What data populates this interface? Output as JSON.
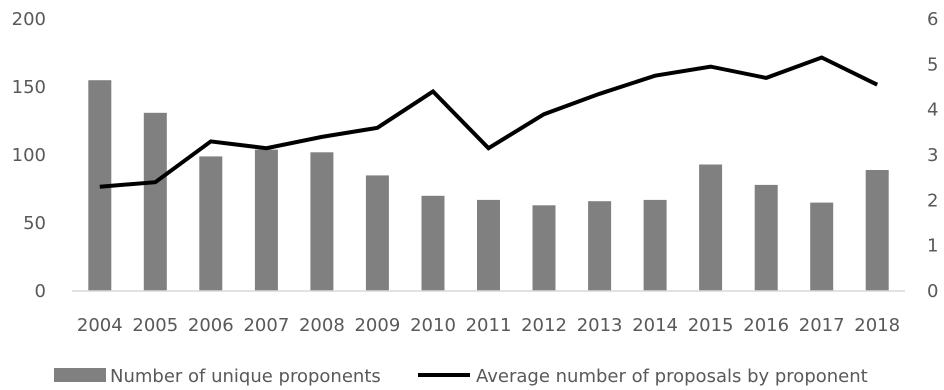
{
  "chart_data": {
    "type": "bar",
    "categories": [
      "2004",
      "2005",
      "2006",
      "2007",
      "2008",
      "2009",
      "2010",
      "2011",
      "2012",
      "2013",
      "2014",
      "2015",
      "2016",
      "2017",
      "2018"
    ],
    "series": [
      {
        "name": "Number of unique proponents",
        "type": "bar",
        "axis": "left",
        "color": "#808080",
        "values": [
          155,
          131,
          99,
          104,
          102,
          85,
          70,
          67,
          63,
          66,
          67,
          93,
          78,
          65,
          89
        ]
      },
      {
        "name": "Average number of proposals by proponent",
        "type": "line",
        "axis": "right",
        "color": "#000000",
        "values": [
          2.3,
          2.4,
          3.3,
          3.15,
          3.4,
          3.6,
          4.4,
          3.15,
          3.9,
          4.35,
          4.75,
          4.95,
          4.7,
          5.15,
          4.55
        ]
      }
    ],
    "y_left": {
      "ylim": [
        0,
        200
      ],
      "ticks": [
        "0",
        "50",
        "100",
        "150",
        "200"
      ]
    },
    "y_right": {
      "ylim": [
        0,
        6
      ],
      "ticks": [
        "0",
        "1",
        "2",
        "3",
        "4",
        "5",
        "6"
      ]
    },
    "legend": {
      "position": "bottom"
    },
    "grid": false
  }
}
